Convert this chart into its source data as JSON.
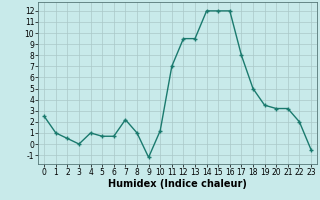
{
  "x": [
    0,
    1,
    2,
    3,
    4,
    5,
    6,
    7,
    8,
    9,
    10,
    11,
    12,
    13,
    14,
    15,
    16,
    17,
    18,
    19,
    20,
    21,
    22,
    23
  ],
  "y": [
    2.5,
    1.0,
    0.5,
    0.0,
    1.0,
    0.7,
    0.7,
    2.2,
    1.0,
    -1.2,
    1.2,
    7.0,
    9.5,
    9.5,
    12.0,
    12.0,
    12.0,
    8.0,
    5.0,
    3.5,
    3.2,
    3.2,
    2.0,
    -0.5
  ],
  "xlim": [
    -0.5,
    23.5
  ],
  "ylim": [
    -1.8,
    12.8
  ],
  "yticks": [
    -1,
    0,
    1,
    2,
    3,
    4,
    5,
    6,
    7,
    8,
    9,
    10,
    11,
    12
  ],
  "xticks": [
    0,
    1,
    2,
    3,
    4,
    5,
    6,
    7,
    8,
    9,
    10,
    11,
    12,
    13,
    14,
    15,
    16,
    17,
    18,
    19,
    20,
    21,
    22,
    23
  ],
  "xlabel": "Humidex (Indice chaleur)",
  "line_color": "#1a7a6e",
  "bg_color": "#c8eaea",
  "grid_color": "#aac8c8",
  "marker": "+",
  "marker_size": 3.5,
  "linewidth": 1.0,
  "xlabel_fontsize": 7,
  "tick_fontsize": 5.5
}
